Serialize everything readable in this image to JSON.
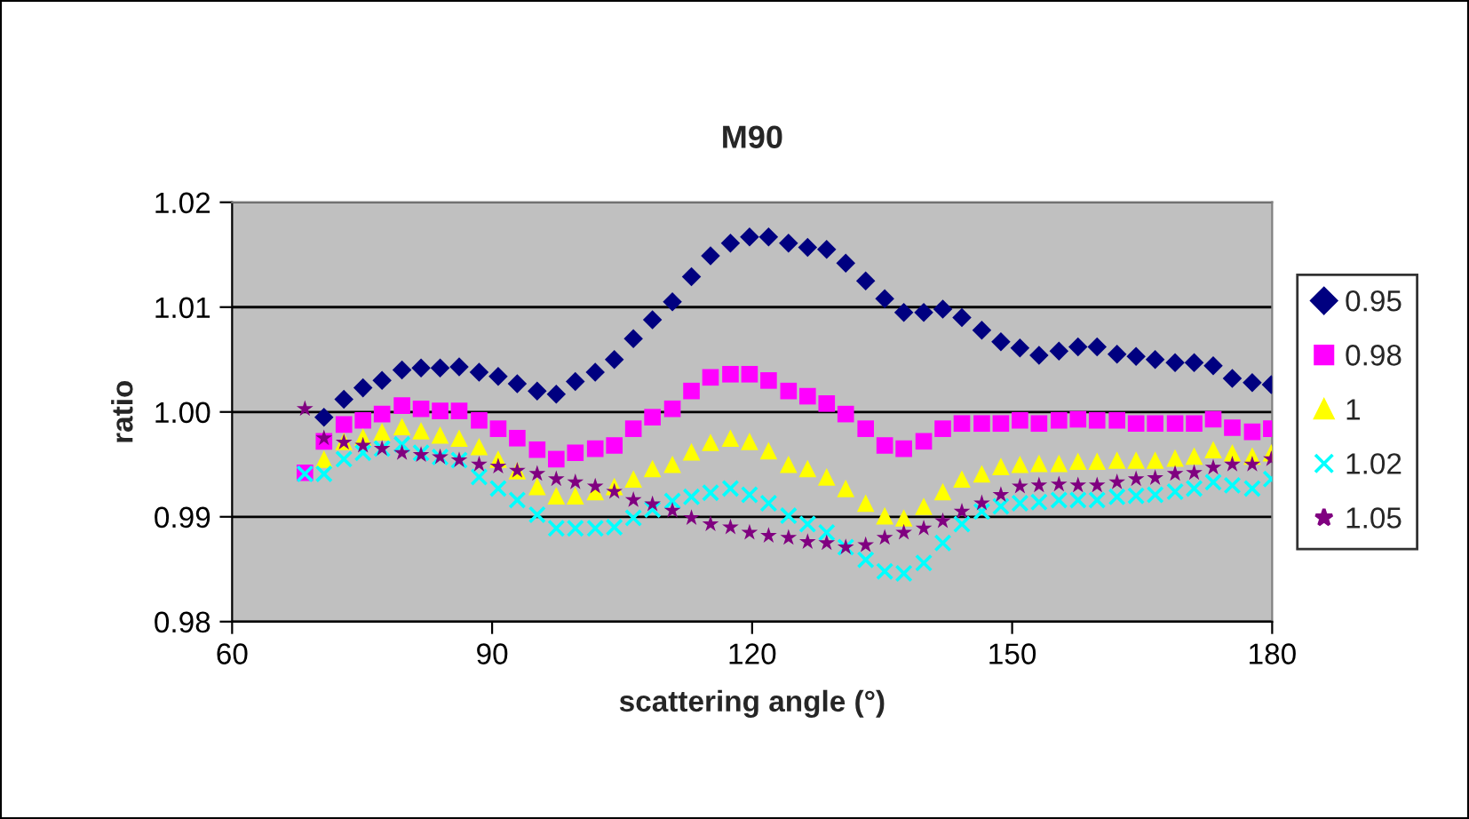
{
  "chart_data": {
    "type": "scatter",
    "title": "M90",
    "xlabel": "scattering angle (°)",
    "ylabel": "ratio",
    "x": [
      68.4,
      70.6,
      72.9,
      75.1,
      77.3,
      79.6,
      81.8,
      84.0,
      86.2,
      88.5,
      90.7,
      92.9,
      95.2,
      97.4,
      99.6,
      101.9,
      104.1,
      106.3,
      108.5,
      110.8,
      113.0,
      115.2,
      117.5,
      119.7,
      121.9,
      124.2,
      126.4,
      128.6,
      130.8,
      133.1,
      135.3,
      137.5,
      139.8,
      142.0,
      144.2,
      146.5,
      148.7,
      150.9,
      153.1,
      155.4,
      157.6,
      159.8,
      162.1,
      164.3,
      166.5,
      168.8,
      171.0,
      173.2,
      175.4,
      177.7,
      179.9
    ],
    "series": [
      {
        "name": "0.95",
        "color": "#000080",
        "marker": "diamond",
        "values": [
          null,
          0.9995,
          1.0012,
          1.0023,
          1.003,
          1.004,
          1.0042,
          1.0042,
          1.0043,
          1.0038,
          1.0034,
          1.0027,
          1.002,
          1.0017,
          1.0029,
          1.0038,
          1.005,
          1.007,
          1.0088,
          1.0105,
          1.0129,
          1.0149,
          1.0161,
          1.0167,
          1.0167,
          1.0161,
          1.0157,
          1.0155,
          1.0142,
          1.0125,
          1.0108,
          1.0095,
          1.0095,
          1.0098,
          1.009,
          1.0078,
          1.0067,
          1.0061,
          1.0054,
          1.0058,
          1.0062,
          1.0062,
          1.0055,
          1.0053,
          1.005,
          1.0047,
          1.0047,
          1.0044,
          1.0032,
          1.0028,
          1.0026
        ]
      },
      {
        "name": "0.98",
        "color": "#ff00ff",
        "marker": "square",
        "values": [
          0.9942,
          0.9972,
          0.9988,
          0.9992,
          0.9998,
          1.0006,
          1.0003,
          1.0001,
          1.0001,
          0.9992,
          0.9984,
          0.9975,
          0.9964,
          0.9955,
          0.9961,
          0.9965,
          0.9968,
          0.9984,
          0.9995,
          1.0003,
          1.002,
          1.0033,
          1.0036,
          1.0036,
          1.003,
          1.002,
          1.0015,
          1.0008,
          0.9998,
          0.9984,
          0.9968,
          0.9965,
          0.9972,
          0.9984,
          0.9989,
          0.9989,
          0.9989,
          0.9992,
          0.9989,
          0.9992,
          0.9993,
          0.9992,
          0.9992,
          0.9989,
          0.9989,
          0.9989,
          0.9989,
          0.9993,
          0.9985,
          0.9981,
          0.9984
        ]
      },
      {
        "name": "1",
        "color": "#ffff00",
        "marker": "triangle",
        "values": [
          null,
          0.9955,
          0.9972,
          0.9976,
          0.9981,
          0.9986,
          0.9982,
          0.9978,
          0.9975,
          0.9967,
          0.9955,
          0.9944,
          0.9929,
          0.992,
          0.992,
          0.9924,
          0.9929,
          0.9936,
          0.9946,
          0.995,
          0.9962,
          0.9971,
          0.9975,
          0.9972,
          0.9963,
          0.995,
          0.9946,
          0.9938,
          0.9927,
          0.9913,
          0.9901,
          0.9899,
          0.991,
          0.9924,
          0.9936,
          0.9941,
          0.9948,
          0.995,
          0.9951,
          0.9951,
          0.9953,
          0.9953,
          0.9954,
          0.9954,
          0.9954,
          0.9956,
          0.9958,
          0.9964,
          0.9961,
          0.9958,
          0.9961
        ]
      },
      {
        "name": "1.02",
        "color": "#00ffff",
        "marker": "cross",
        "values": [
          0.9941,
          0.9941,
          0.9955,
          0.9961,
          0.9965,
          0.9969,
          0.9961,
          0.9957,
          0.9954,
          0.9938,
          0.9927,
          0.9916,
          0.9902,
          0.9889,
          0.9889,
          0.9889,
          0.989,
          0.9899,
          0.9907,
          0.9915,
          0.9919,
          0.9923,
          0.9927,
          0.9921,
          0.9913,
          0.9901,
          0.9893,
          0.9885,
          0.9871,
          0.9859,
          0.9848,
          0.9846,
          0.9856,
          0.9875,
          0.9893,
          0.9905,
          0.991,
          0.9913,
          0.9914,
          0.9916,
          0.9916,
          0.9916,
          0.9919,
          0.992,
          0.9921,
          0.9924,
          0.9927,
          0.9933,
          0.993,
          0.9927,
          0.9936
        ]
      },
      {
        "name": "1.05",
        "color": "#800080",
        "marker": "star",
        "values": [
          1.0003,
          0.9975,
          0.9971,
          0.9968,
          0.9965,
          0.9961,
          0.9959,
          0.9957,
          0.9954,
          0.995,
          0.9948,
          0.9944,
          0.9941,
          0.9936,
          0.9933,
          0.9929,
          0.9924,
          0.9916,
          0.9912,
          0.9906,
          0.9899,
          0.9893,
          0.989,
          0.9885,
          0.9882,
          0.988,
          0.9876,
          0.9875,
          0.9871,
          0.9873,
          0.988,
          0.9885,
          0.9889,
          0.9896,
          0.9905,
          0.9913,
          0.9921,
          0.9929,
          0.993,
          0.9931,
          0.993,
          0.993,
          0.9933,
          0.9936,
          0.9937,
          0.9941,
          0.9942,
          0.9947,
          0.995,
          0.995,
          0.9955
        ]
      }
    ],
    "xlim": [
      60,
      180
    ],
    "xticks": [
      60,
      90,
      120,
      150,
      180
    ],
    "ylim": [
      0.98,
      1.02
    ],
    "yticks": [
      0.98,
      0.99,
      {
        "value": 1.0,
        "label": "1.00"
      },
      1.01,
      1.02
    ],
    "grid": "y",
    "legend": "right"
  }
}
